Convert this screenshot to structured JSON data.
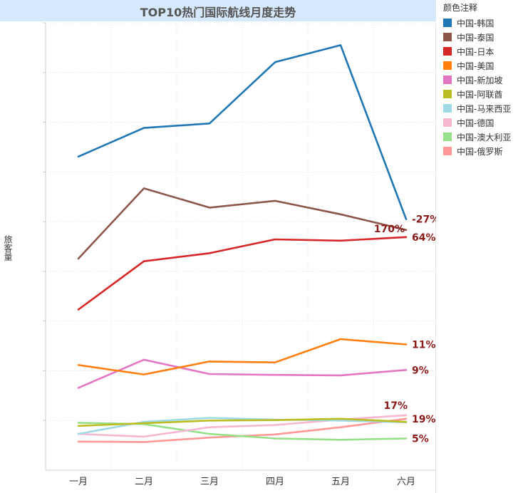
{
  "chart_data": {
    "type": "line",
    "title": "TOP10热门国际航线月度走势",
    "xlabel": "",
    "ylabel": "旅客量",
    "legend_title": "颜色注释",
    "legend_position": "right",
    "grid": true,
    "categories": [
      "一月",
      "二月",
      "三月",
      "四月",
      "五月",
      "六月"
    ],
    "ylim": [
      0,
      100
    ],
    "series": [
      {
        "name": "中国-韩国",
        "color": "#1f77b4",
        "values": [
          70.1,
          76.5,
          77.5,
          91.2,
          95.0,
          56.1
        ],
        "label": "-27%"
      },
      {
        "name": "中国-泰国",
        "color": "#8c564b",
        "values": [
          47.3,
          63.0,
          58.7,
          60.2,
          57.2,
          53.7
        ],
        "label": "170%"
      },
      {
        "name": "中国-日本",
        "color": "#d62728",
        "values": [
          35.9,
          46.7,
          48.5,
          51.6,
          51.3,
          52.1
        ],
        "label": "64%"
      },
      {
        "name": "中国-美国",
        "color": "#ff7f0e",
        "values": [
          23.5,
          21.4,
          24.3,
          24.1,
          29.3,
          28.1
        ],
        "label": "11%"
      },
      {
        "name": "中国-新加坡",
        "color": "#e377c2",
        "values": [
          18.4,
          24.7,
          21.5,
          21.3,
          21.2,
          22.4
        ],
        "label": "9%"
      },
      {
        "name": "中国-阿联酋",
        "color": "#bcbd22",
        "values": [
          9.9,
          10.5,
          11.1,
          11.2,
          11.5,
          10.8
        ],
        "label": ""
      },
      {
        "name": "中国-马来西亚",
        "color": "#9edae5",
        "values": [
          8.1,
          10.8,
          11.7,
          11.3,
          11.1,
          10.7
        ],
        "label": ""
      },
      {
        "name": "中国-德国",
        "color": "#f7b6d2",
        "values": [
          8.1,
          7.5,
          9.6,
          10.1,
          11.3,
          12.3
        ],
        "label": "17%"
      },
      {
        "name": "中国-澳大利亚",
        "color": "#98df8a",
        "values": [
          10.6,
          10.3,
          8.1,
          7.1,
          6.8,
          7.1
        ],
        "label": "5%"
      },
      {
        "name": "中国-俄罗斯",
        "color": "#ff9896",
        "values": [
          6.4,
          6.3,
          7.3,
          8.0,
          9.6,
          11.5
        ],
        "label": "19%"
      }
    ]
  }
}
